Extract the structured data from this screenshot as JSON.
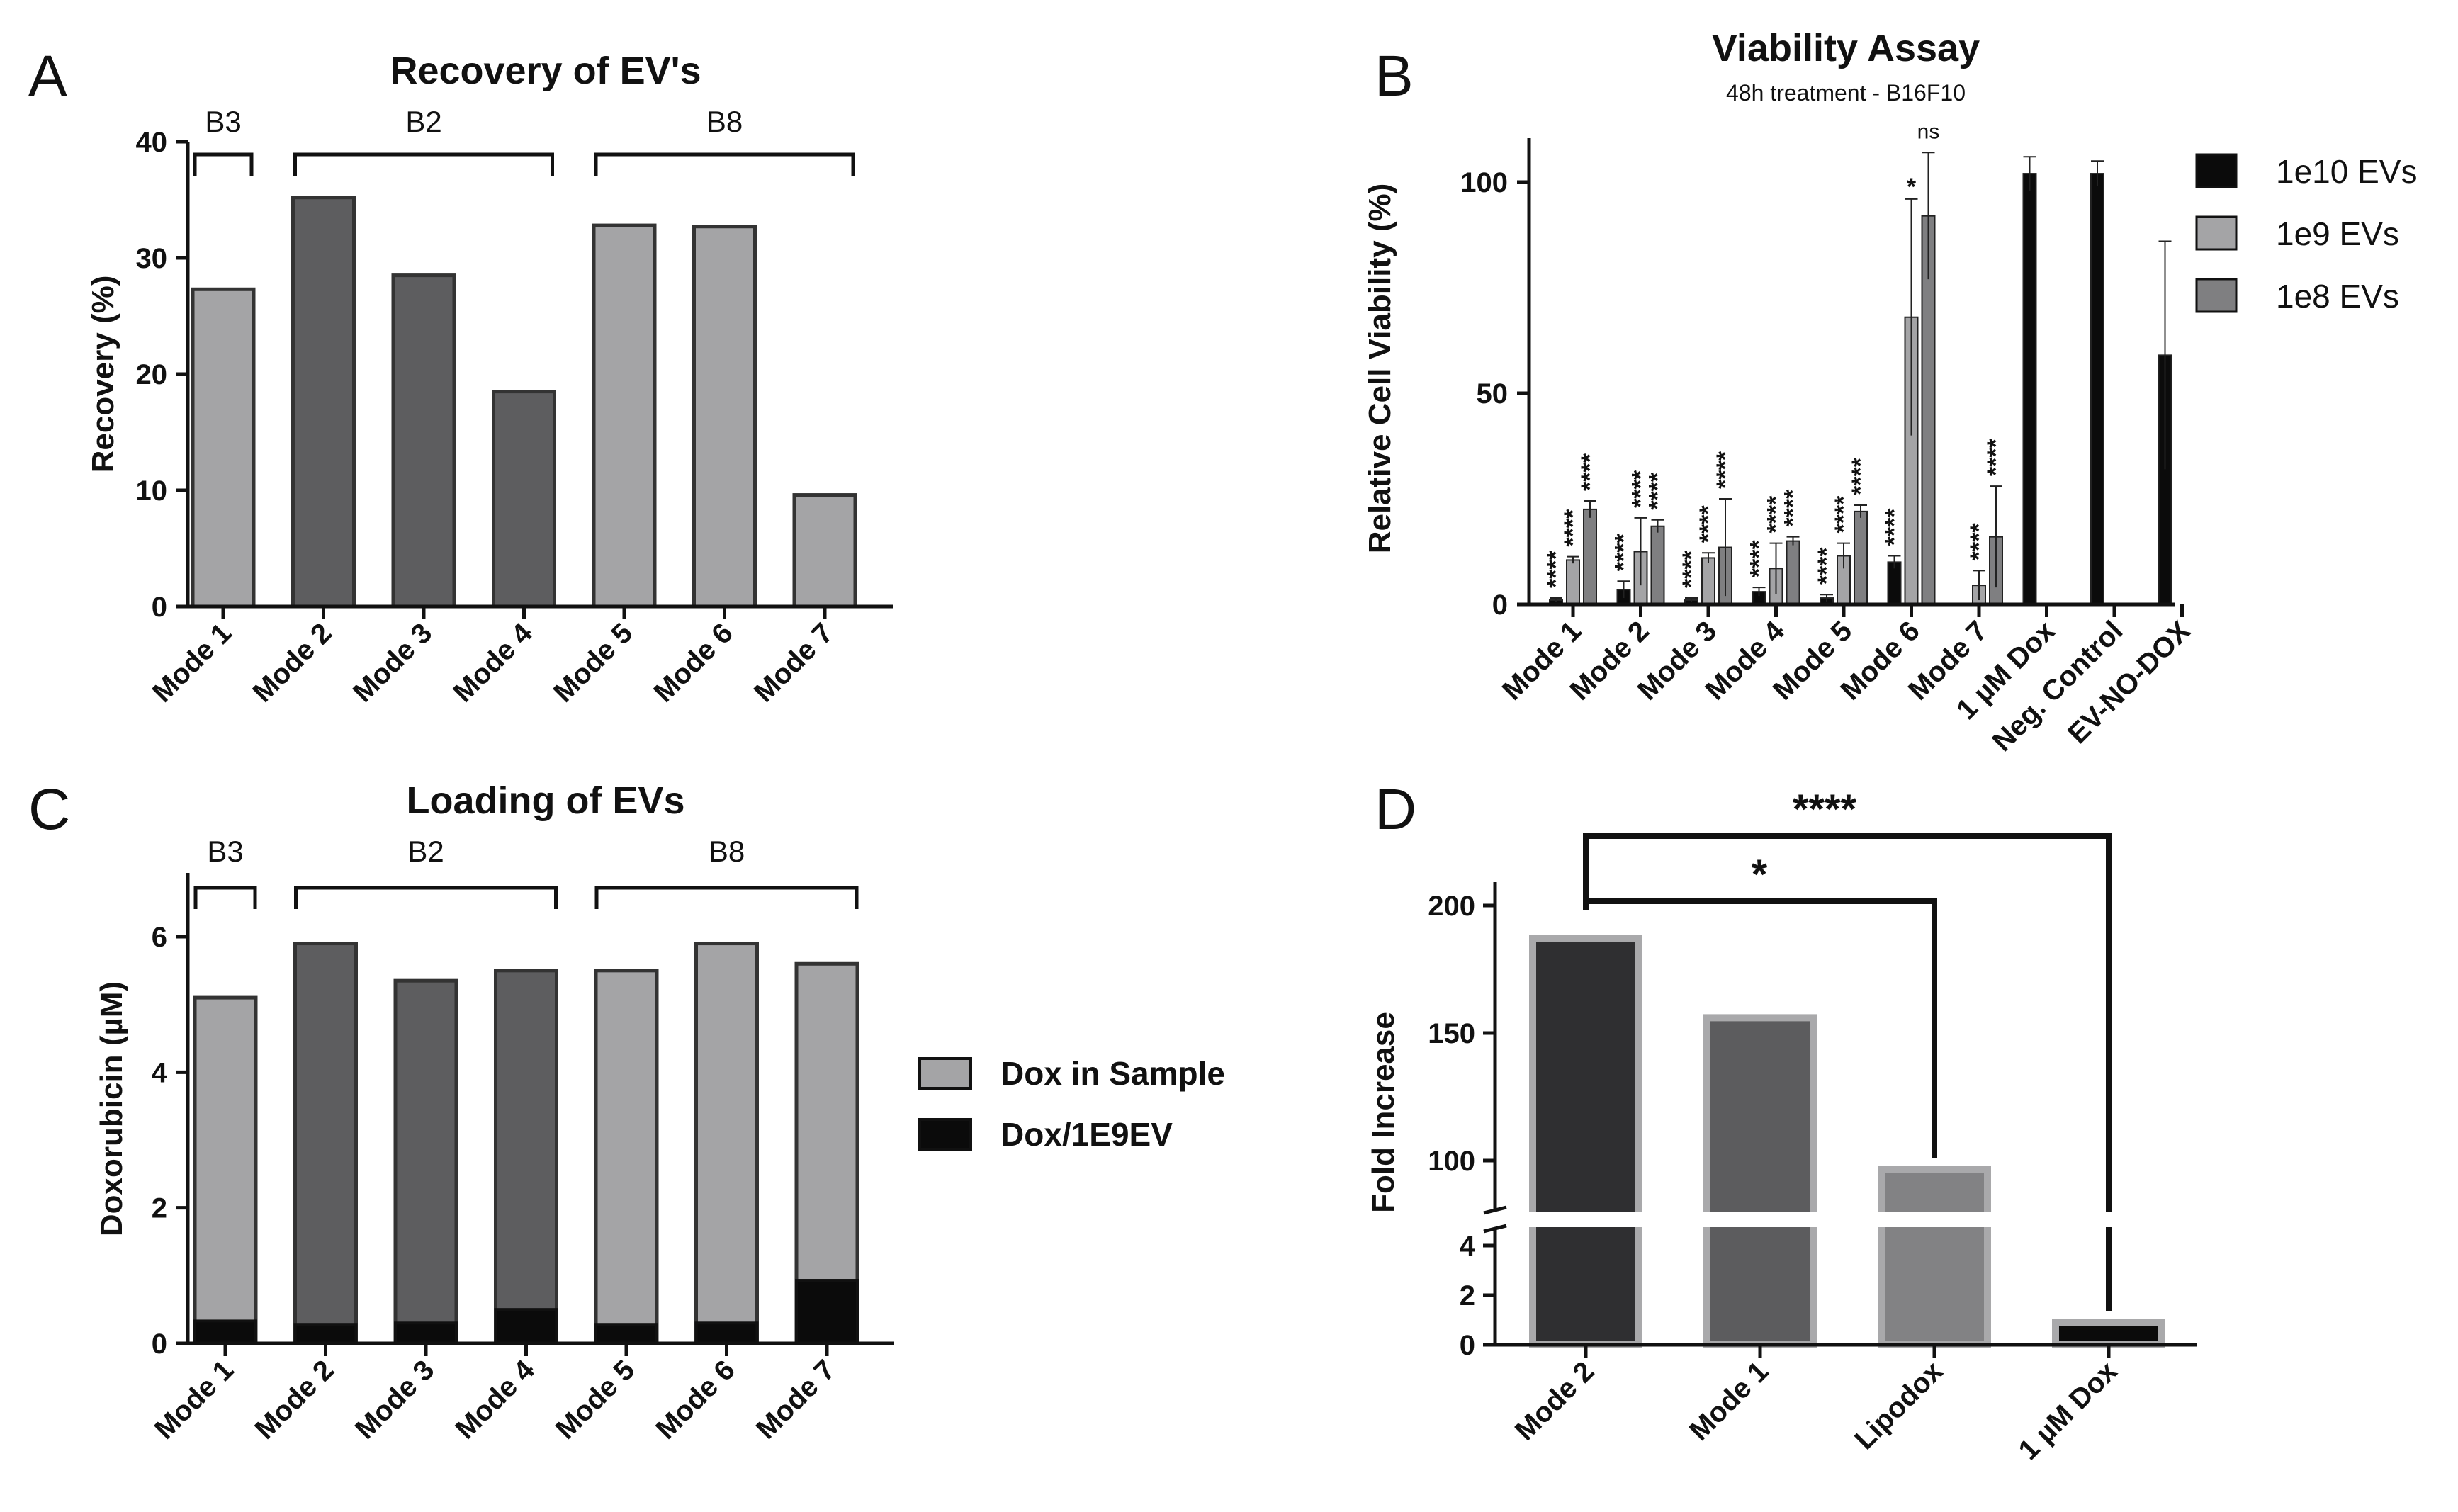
{
  "colors": {
    "light": "#a4a4a6",
    "dark": "#5d5d5f",
    "black": "#0b0b0b",
    "grey_mid": "#7f7f81",
    "dark_d": "#2f2f31",
    "mid_d": "#5c5c5e",
    "light_d": "#828284",
    "border_d": "#a9a9ab"
  },
  "chart_data": [
    {
      "panel": "A",
      "type": "bar",
      "title": "Recovery of EV's",
      "xlabel": "",
      "ylabel": "Recovery (%)",
      "ylim": [
        0,
        40
      ],
      "yticks": [
        "0",
        "10",
        "20",
        "30",
        "40"
      ],
      "categories": [
        "Mode 1",
        "Mode 2",
        "Mode 3",
        "Mode 4",
        "Mode 5",
        "Mode 6",
        "Mode 7"
      ],
      "values": [
        27.3,
        35.2,
        28.5,
        18.5,
        32.8,
        32.7,
        9.6
      ],
      "shades": [
        "light",
        "dark",
        "dark",
        "dark",
        "light",
        "light",
        "light"
      ],
      "groups": [
        {
          "label": "B3",
          "from": 0,
          "to": 0
        },
        {
          "label": "B2",
          "from": 1,
          "to": 3
        },
        {
          "label": "B8",
          "from": 4,
          "to": 6
        }
      ]
    },
    {
      "panel": "B",
      "type": "bar",
      "title": "Viability Assay",
      "subtitle": "48h treatment - B16F10",
      "xlabel": "",
      "ylabel": "Relative Cell Viability (%)",
      "ylim": [
        0,
        110
      ],
      "yticks": [
        "0",
        "50",
        "100"
      ],
      "categories": [
        "Mode 1",
        "Mode 2",
        "Mode 3",
        "Mode 4",
        "Mode 5",
        "Mode 6",
        "Mode 7",
        "1 µM Dox",
        "Neg. Control",
        "EV-NO-DOX"
      ],
      "legend": [
        "1e10 EVs",
        "1e9 EVs",
        "1e8 EVs"
      ],
      "series": [
        {
          "name": "1e10 EVs",
          "values": [
            1,
            3.5,
            1,
            3,
            1.5,
            10,
            null,
            102,
            102,
            59
          ],
          "errors": [
            0.5,
            2,
            0.5,
            1,
            0.8,
            1.5,
            null,
            4,
            3,
            27
          ]
        },
        {
          "name": "1e9 EVs",
          "values": [
            10.5,
            12.5,
            11,
            8.5,
            11.5,
            68,
            4.5,
            null,
            null,
            null
          ],
          "errors": [
            0.8,
            8,
            1.2,
            6,
            3,
            28,
            3.5,
            null,
            null,
            null
          ]
        },
        {
          "name": "1e8 EVs",
          "values": [
            22.5,
            18.5,
            13.5,
            15,
            22,
            92,
            16,
            null,
            null,
            null
          ],
          "errors": [
            2,
            1.5,
            11.5,
            1,
            1.5,
            15,
            12,
            null,
            null,
            null
          ]
        }
      ],
      "annotations": [
        {
          "category": 0,
          "series": 0,
          "text": "****"
        },
        {
          "category": 0,
          "series": 1,
          "text": "****"
        },
        {
          "category": 0,
          "series": 2,
          "text": "****"
        },
        {
          "category": 1,
          "series": 0,
          "text": "****"
        },
        {
          "category": 1,
          "series": 1,
          "text": "****"
        },
        {
          "category": 1,
          "series": 2,
          "text": "****"
        },
        {
          "category": 2,
          "series": 0,
          "text": "****"
        },
        {
          "category": 2,
          "series": 1,
          "text": "****"
        },
        {
          "category": 2,
          "series": 2,
          "text": "****"
        },
        {
          "category": 3,
          "series": 0,
          "text": "****"
        },
        {
          "category": 3,
          "series": 1,
          "text": "****"
        },
        {
          "category": 3,
          "series": 2,
          "text": "****"
        },
        {
          "category": 4,
          "series": 0,
          "text": "****"
        },
        {
          "category": 4,
          "series": 1,
          "text": "****"
        },
        {
          "category": 4,
          "series": 2,
          "text": "****"
        },
        {
          "category": 5,
          "series": 0,
          "text": "****"
        },
        {
          "category": 5,
          "series": 1,
          "text": "*"
        },
        {
          "category": 5,
          "series": 2,
          "text": "ns"
        },
        {
          "category": 6,
          "series": 1,
          "text": "****"
        },
        {
          "category": 6,
          "series": 2,
          "text": "****"
        }
      ]
    },
    {
      "panel": "C",
      "type": "bar",
      "title": "Loading of EVs",
      "xlabel": "",
      "ylabel": "Doxorubicin (µM)",
      "ylim": [
        0,
        7
      ],
      "yticks": [
        "0",
        "2",
        "4",
        "6"
      ],
      "categories": [
        "Mode 1",
        "Mode 2",
        "Mode 3",
        "Mode 4",
        "Mode 5",
        "Mode 6",
        "Mode 7"
      ],
      "legend": [
        "Dox in Sample",
        "Dox/1E9EV"
      ],
      "series": [
        {
          "name": "Dox in Sample",
          "values": [
            5.1,
            5.9,
            5.35,
            5.5,
            5.5,
            5.9,
            5.6
          ]
        },
        {
          "name": "Dox/1E9EV",
          "values": [
            0.33,
            0.28,
            0.3,
            0.5,
            0.28,
            0.3,
            0.93
          ]
        }
      ],
      "shades": [
        "light",
        "dark",
        "dark",
        "dark",
        "light",
        "light",
        "light"
      ],
      "groups": [
        {
          "label": "B3",
          "from": 0,
          "to": 0
        },
        {
          "label": "B2",
          "from": 1,
          "to": 3
        },
        {
          "label": "B8",
          "from": 4,
          "to": 6
        }
      ]
    },
    {
      "panel": "D",
      "type": "bar",
      "title": "",
      "xlabel": "",
      "ylabel": "Fold Increase",
      "yaxis_break": true,
      "ylim_upper": [
        85,
        210
      ],
      "ylim_lower": [
        0,
        5
      ],
      "yticks_upper": [
        "100",
        "150",
        "200"
      ],
      "yticks_lower": [
        "0",
        "2",
        "4"
      ],
      "categories": [
        "Mode 2",
        "Mode 1",
        "Lipodox",
        "1 µM Dox"
      ],
      "values": [
        187,
        156,
        96.5,
        0.9
      ],
      "comparisons": [
        {
          "from": 0,
          "to": 3,
          "label": "****"
        },
        {
          "from": 0,
          "to": 2,
          "label": "*"
        }
      ]
    }
  ]
}
